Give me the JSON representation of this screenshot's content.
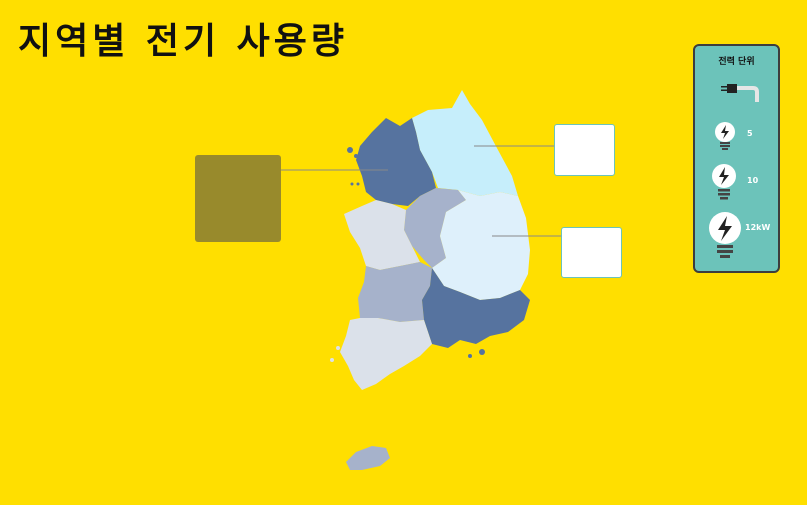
{
  "title": "지역별 전기 사용량",
  "legend": {
    "title": "전력 단위",
    "items": [
      {
        "label": "5",
        "icon": "lightbulb-small-icon"
      },
      {
        "label": "10",
        "icon": "lightbulb-medium-icon"
      },
      {
        "label": "12kW",
        "icon": "lightbulb-large-icon"
      }
    ],
    "plug_icon": "plug-icon"
  },
  "regions": [
    {
      "name": "gyeonggi",
      "color": "#56739F"
    },
    {
      "name": "gangwon",
      "color": "#C6EEFB"
    },
    {
      "name": "chungbuk",
      "color": "#A6B2CB"
    },
    {
      "name": "chungnam",
      "color": "#DBE1EA"
    },
    {
      "name": "gyeongbuk",
      "color": "#DEF0FB"
    },
    {
      "name": "jeonbuk",
      "color": "#A6B2CB"
    },
    {
      "name": "gyeongnam",
      "color": "#56739F"
    },
    {
      "name": "jeonnam",
      "color": "#DBE1EA"
    },
    {
      "name": "jeju",
      "color": "#A6B2CB"
    }
  ],
  "colors": {
    "background": "#FFDF00",
    "legend_bg": "#6CC3BA",
    "filled_box": "#988A2C"
  }
}
